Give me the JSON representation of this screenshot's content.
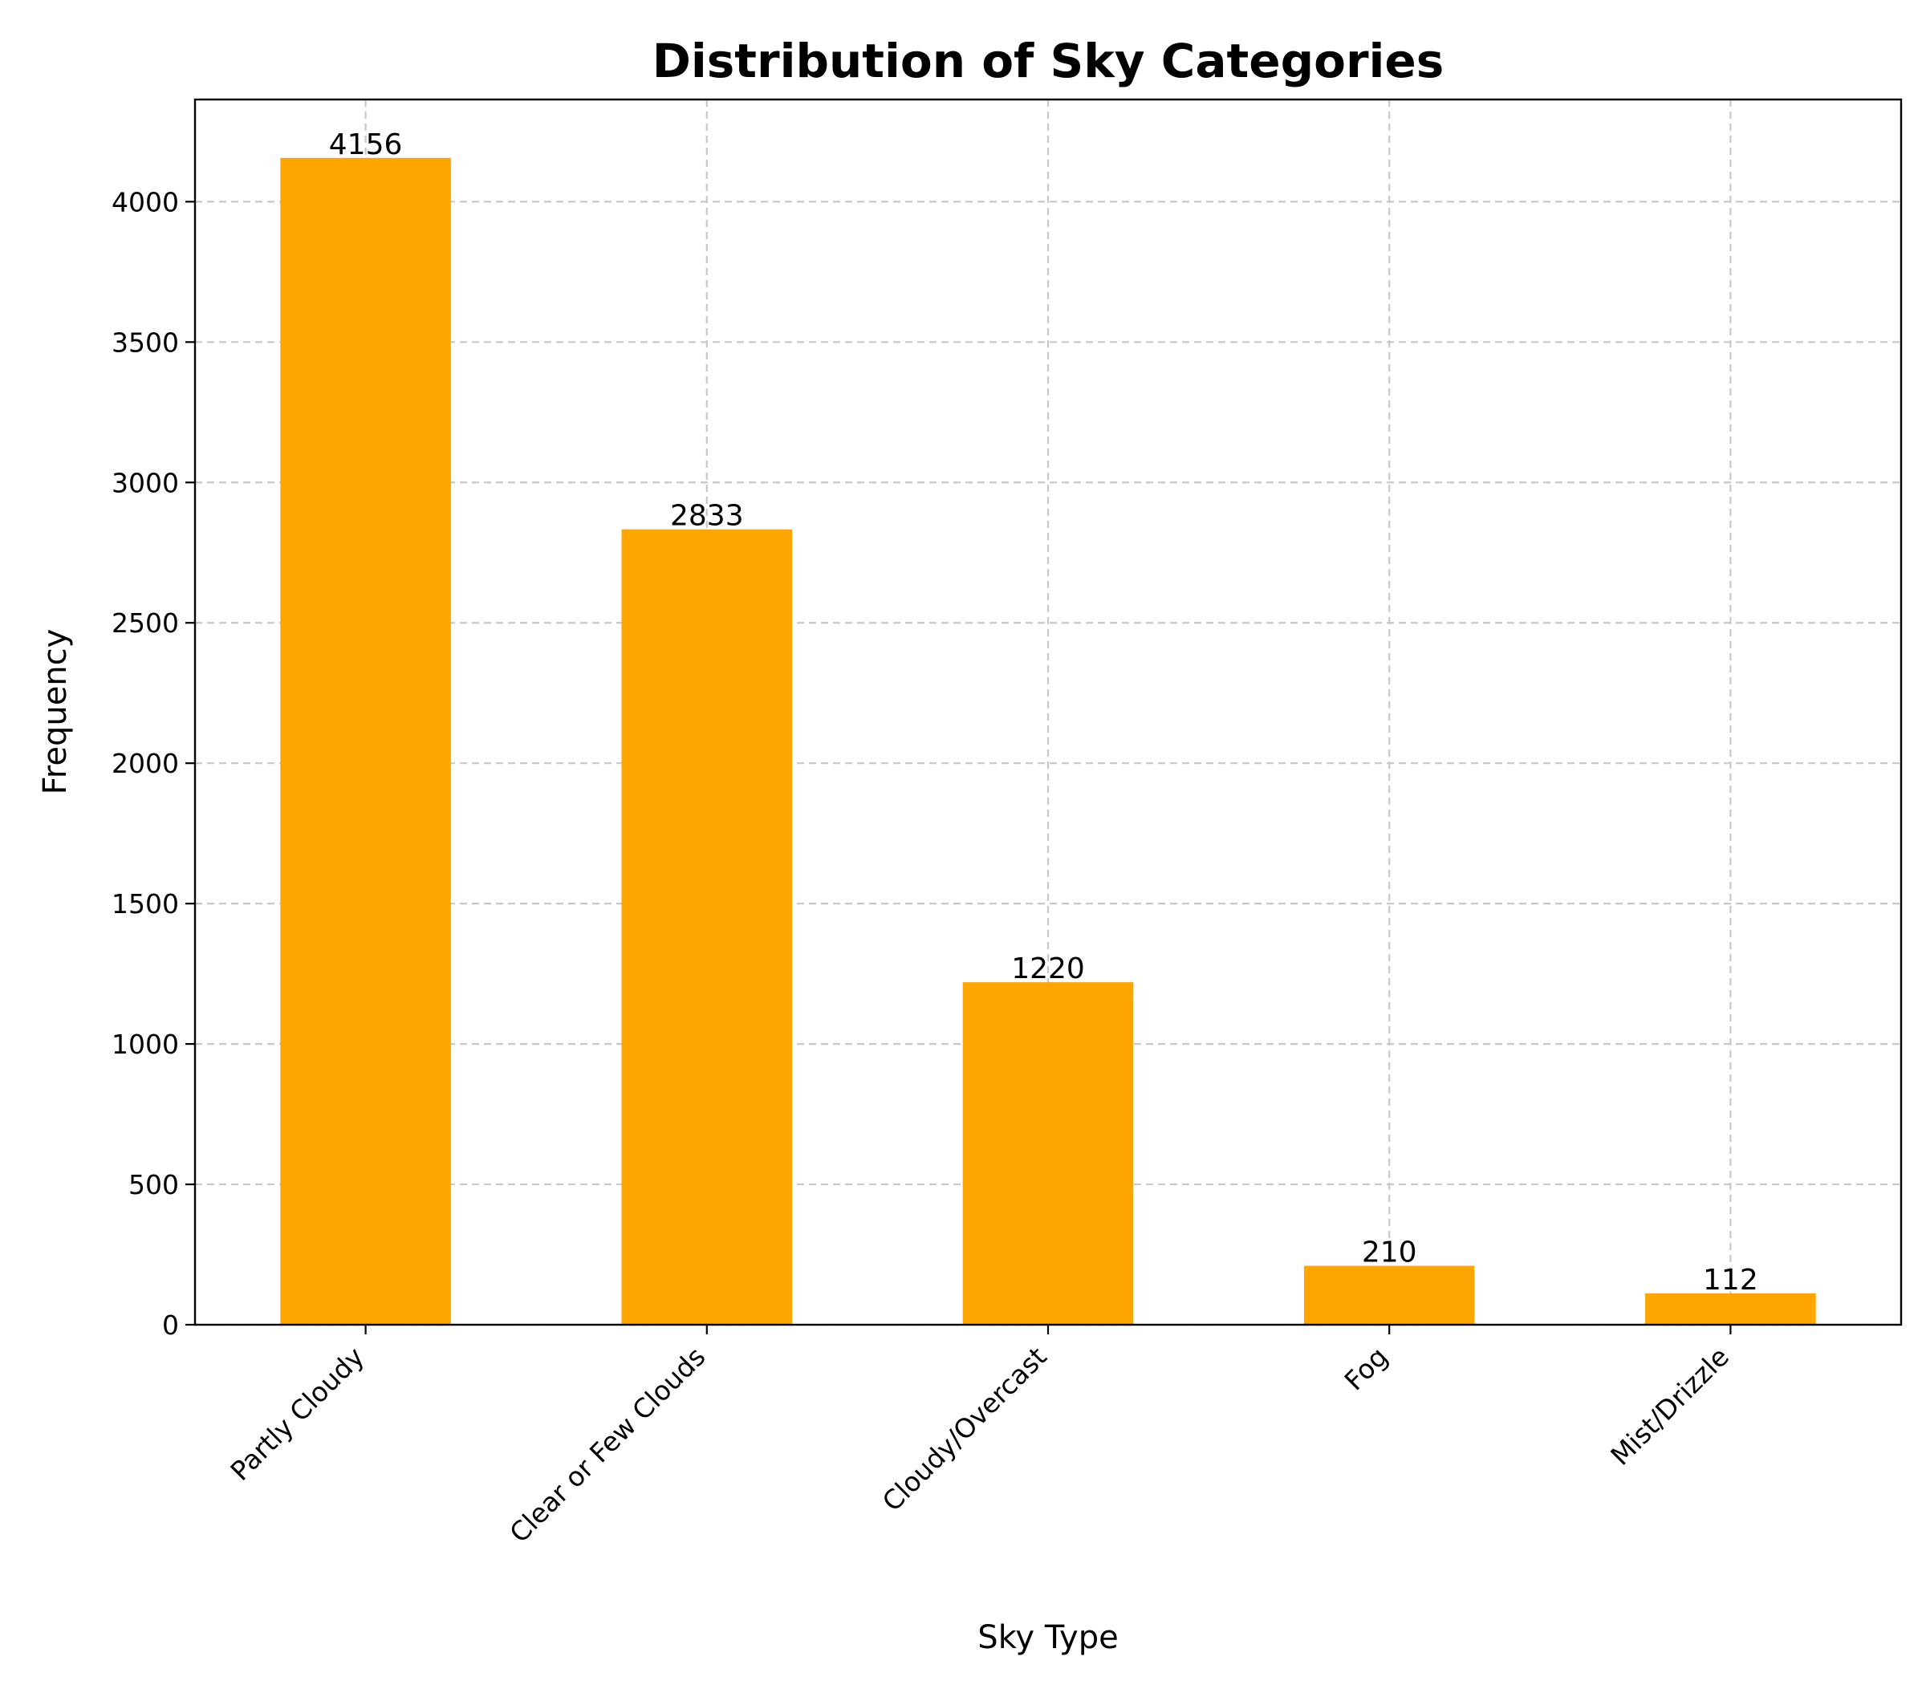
{
  "chart_data": {
    "type": "bar",
    "title": "Distribution of Sky Categories",
    "xlabel": "Sky Type",
    "ylabel": "Frequency",
    "categories": [
      "Partly Cloudy",
      "Clear or Few Clouds",
      "Cloudy/Overcast",
      "Fog",
      "Mist/Drizzle"
    ],
    "values": [
      4156,
      2833,
      1220,
      210,
      112
    ],
    "data_labels": [
      "4156",
      "2833",
      "1220",
      "210",
      "112"
    ],
    "yticks": [
      0,
      500,
      1000,
      1500,
      2000,
      2500,
      3000,
      3500,
      4000
    ],
    "ytick_labels": [
      "0",
      "500",
      "1000",
      "1500",
      "2000",
      "2500",
      "3000",
      "3500",
      "4000"
    ],
    "ylim": [
      0,
      4364
    ],
    "grid": true,
    "bar_color": "#FFA500",
    "xtick_rotation_deg": 45
  }
}
